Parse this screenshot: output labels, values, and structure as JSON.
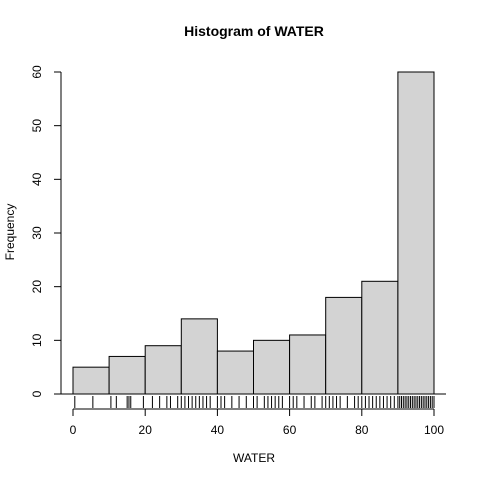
{
  "chart_data": {
    "type": "bar",
    "title": "Histogram of WATER",
    "xlabel": "WATER",
    "ylabel": "Frequency",
    "bins": [
      {
        "from": 0,
        "to": 10,
        "count": 5
      },
      {
        "from": 10,
        "to": 20,
        "count": 7
      },
      {
        "from": 20,
        "to": 30,
        "count": 9
      },
      {
        "from": 30,
        "to": 40,
        "count": 14
      },
      {
        "from": 40,
        "to": 50,
        "count": 8
      },
      {
        "from": 50,
        "to": 60,
        "count": 10
      },
      {
        "from": 60,
        "to": 70,
        "count": 11
      },
      {
        "from": 70,
        "to": 80,
        "count": 18
      },
      {
        "from": 80,
        "to": 90,
        "count": 21
      },
      {
        "from": 90,
        "to": 100,
        "count": 60
      }
    ],
    "xlim": [
      0,
      100
    ],
    "ylim": [
      0,
      60
    ],
    "xticks": [
      0,
      20,
      40,
      60,
      80,
      100
    ],
    "yticks": [
      0,
      10,
      20,
      30,
      40,
      50,
      60
    ],
    "rug": [
      0.5,
      5.5,
      10.5,
      12,
      15,
      15.5,
      16,
      19.5,
      22,
      24,
      26,
      27,
      29,
      30,
      31,
      32,
      33,
      34,
      35,
      36,
      37,
      38,
      40,
      41,
      42,
      44,
      46,
      48,
      50,
      51,
      53,
      54,
      55,
      56,
      57,
      58,
      60,
      61,
      62,
      64,
      66,
      67,
      69,
      70,
      71,
      72,
      73,
      74,
      76,
      78,
      79,
      80,
      81,
      82,
      83,
      84,
      85,
      86,
      87,
      88,
      89,
      90,
      90.5,
      91,
      91.5,
      92,
      92.5,
      93,
      93.5,
      94,
      94.5,
      95,
      95.5,
      96,
      96.5,
      97,
      97.5,
      98,
      98.5,
      99,
      99.5,
      100
    ],
    "grid": false,
    "legend": "none"
  }
}
